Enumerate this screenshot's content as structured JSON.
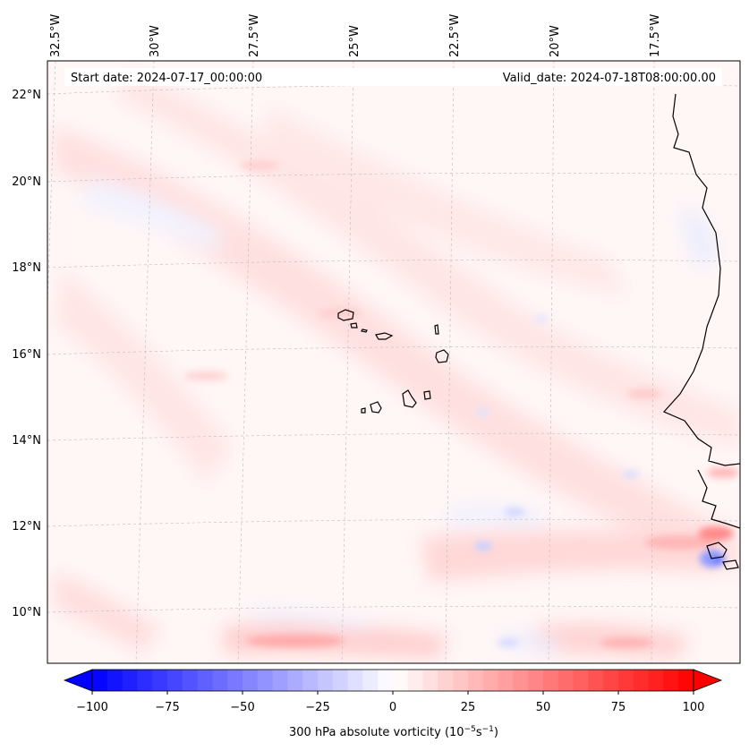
{
  "map": {
    "start_label": "Start date: 2024-07-17_00:00:00",
    "valid_label": "Valid_date: 2024-07-18T08:00:00.00",
    "lon_labels": [
      "32.5°W",
      "30°W",
      "27.5°W",
      "25°W",
      "22.5°W",
      "20°W",
      "17.5°W"
    ],
    "lat_labels": [
      "22°N",
      "20°N",
      "18°N",
      "16°N",
      "14°N",
      "12°N",
      "10°N"
    ],
    "field": "300 hPa absolute vorticity",
    "positive_color": "#ff0000",
    "negative_color": "#0000ff",
    "coastline_color": "#000000"
  },
  "colorbar": {
    "ticks": [
      "−100",
      "−75",
      "−50",
      "−25",
      "0",
      "25",
      "50",
      "75",
      "100"
    ],
    "tick_values": [
      -100,
      -75,
      -50,
      -25,
      0,
      25,
      50,
      75,
      100
    ],
    "min": -100,
    "max": 100,
    "label_main": "300 hPa absolute vorticity (10",
    "label_sup1": "−5",
    "label_mid": "s",
    "label_sup2": "−1",
    "label_end": ")"
  }
}
